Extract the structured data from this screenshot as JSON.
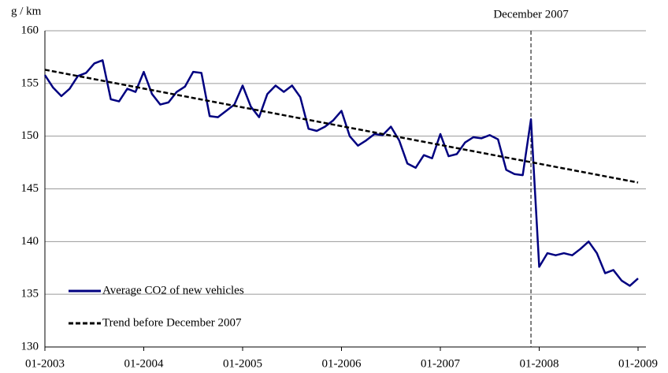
{
  "chart_data": {
    "type": "line",
    "y_label": "g / km",
    "categories": [
      "01-2003",
      null,
      null,
      null,
      null,
      null,
      null,
      null,
      null,
      null,
      null,
      null,
      "01-2004",
      null,
      null,
      null,
      null,
      null,
      null,
      null,
      null,
      null,
      null,
      null,
      "01-2005",
      null,
      null,
      null,
      null,
      null,
      null,
      null,
      null,
      null,
      null,
      null,
      "01-2006",
      null,
      null,
      null,
      null,
      null,
      null,
      null,
      null,
      null,
      null,
      null,
      "01-2007",
      null,
      null,
      null,
      null,
      null,
      null,
      null,
      null,
      null,
      null,
      null,
      "01-2008",
      null,
      null,
      null,
      null,
      null,
      null,
      null,
      null,
      null,
      null,
      null,
      "01-2009"
    ],
    "series": [
      {
        "name": "Average CO2 of new vehicles",
        "color": "#000080",
        "values": [
          155.8,
          154.6,
          153.8,
          154.5,
          155.7,
          156.0,
          156.9,
          157.2,
          153.5,
          153.3,
          154.5,
          154.2,
          156.1,
          154.0,
          153.0,
          153.2,
          154.2,
          154.7,
          156.1,
          156.0,
          151.9,
          151.8,
          152.4,
          153.0,
          154.8,
          152.8,
          151.8,
          154.0,
          154.8,
          154.2,
          154.8,
          153.7,
          150.7,
          150.5,
          150.9,
          151.5,
          152.4,
          150.0,
          149.1,
          149.6,
          150.2,
          150.1,
          150.9,
          149.6,
          147.4,
          147.0,
          148.2,
          147.9,
          150.2,
          148.1,
          148.3,
          149.4,
          149.9,
          149.8,
          150.1,
          149.7,
          146.8,
          146.4,
          146.3,
          151.6,
          137.6,
          138.9,
          138.7,
          138.9,
          138.7,
          139.3,
          140.0,
          138.9,
          137.0,
          137.3,
          136.3,
          135.8,
          136.5
        ]
      },
      {
        "name": "Trend before December 2007",
        "color": "#000000",
        "dashed": true,
        "x": [
          0,
          72
        ],
        "values": [
          156.3,
          145.6
        ]
      }
    ],
    "annotations": [
      {
        "text": "December 2007",
        "x": 59
      }
    ],
    "ylim": [
      130,
      160
    ],
    "yticks": [
      130,
      135,
      140,
      145,
      150,
      155,
      160
    ],
    "grid": true,
    "legend": "lower left"
  }
}
